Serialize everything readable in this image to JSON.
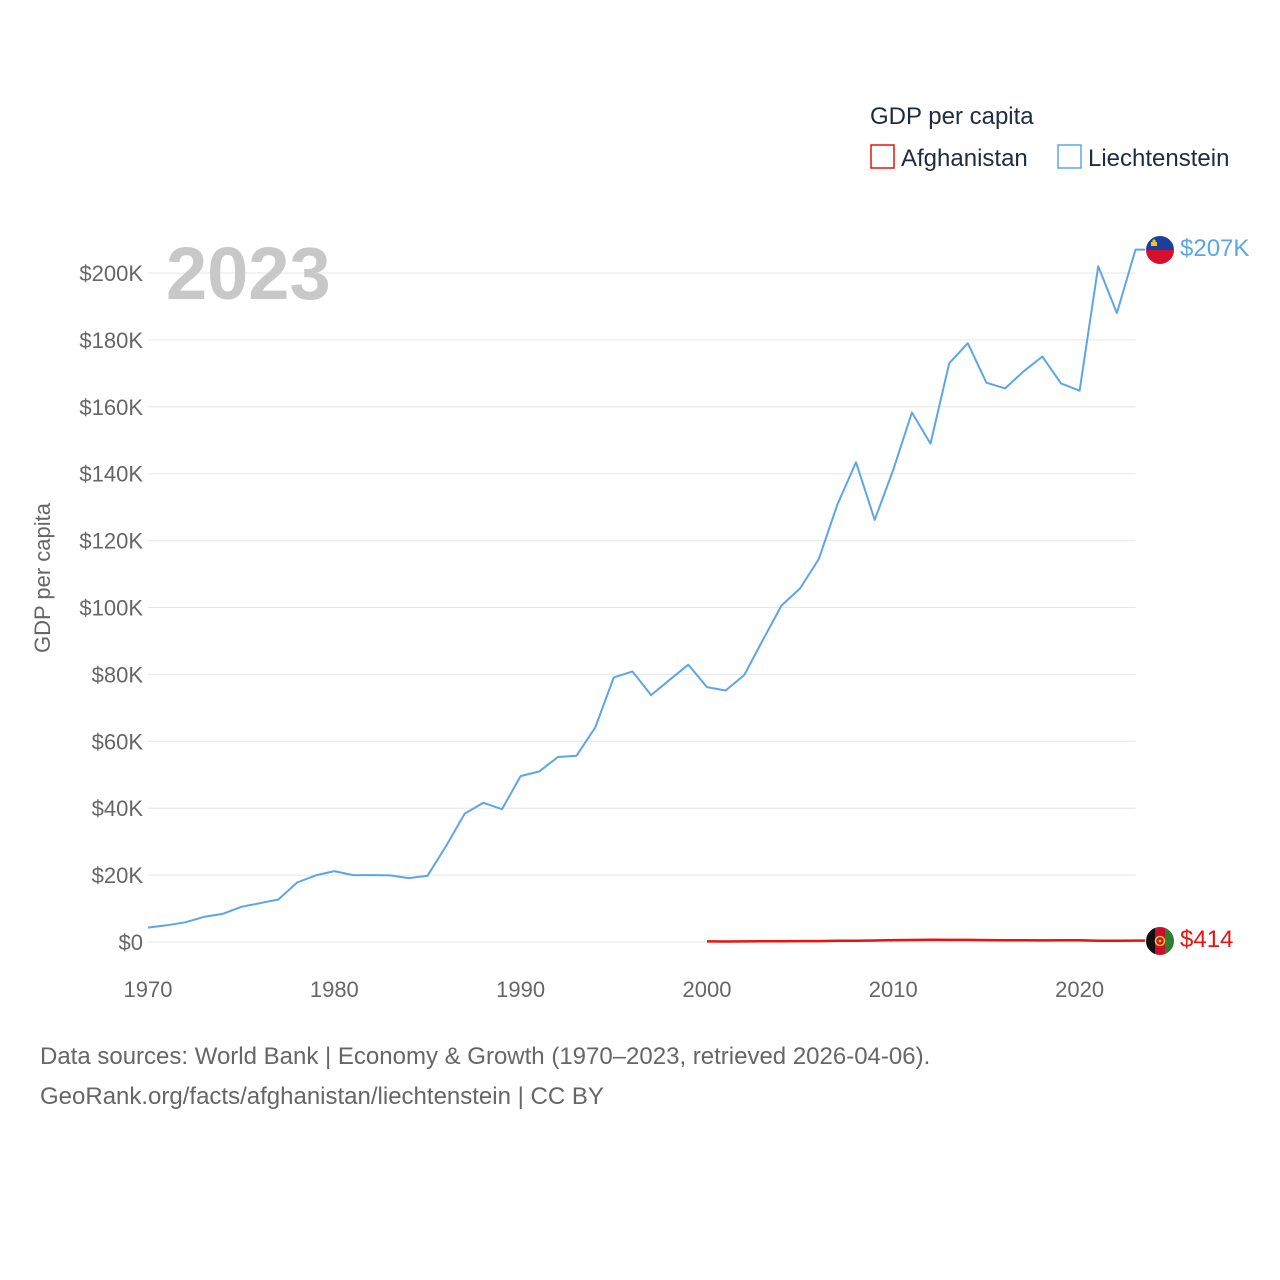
{
  "chart_data": {
    "type": "line",
    "year_label": "2023",
    "legend_title": "GDP per capita",
    "ylabel": "GDP per capita",
    "xlabel": "",
    "xlim": [
      1970,
      2023
    ],
    "ylim": [
      0,
      200000
    ],
    "x_ticks": [
      1970,
      1980,
      1990,
      2000,
      2010,
      2020
    ],
    "x_tick_labels": [
      "1970",
      "1980",
      "1990",
      "2000",
      "2010",
      "2020"
    ],
    "y_ticks": [
      0,
      20000,
      40000,
      60000,
      80000,
      100000,
      120000,
      140000,
      160000,
      180000,
      200000
    ],
    "y_tick_labels": [
      "$0",
      "$20K",
      "$40K",
      "$60K",
      "$80K",
      "$100K",
      "$120K",
      "$140K",
      "$160K",
      "$180K",
      "$200K"
    ],
    "grid": true,
    "legend_position": "top-right",
    "series": [
      {
        "name": "Afghanistan",
        "color": "#e8130f",
        "end_label": "$414",
        "flag": "afghanistan-flag",
        "x": [
          2000,
          2001,
          2002,
          2003,
          2004,
          2005,
          2006,
          2007,
          2008,
          2009,
          2010,
          2011,
          2012,
          2013,
          2014,
          2015,
          2016,
          2017,
          2018,
          2019,
          2020,
          2021,
          2022,
          2023
        ],
        "values": [
          174,
          138,
          183,
          200,
          221,
          255,
          274,
          376,
          382,
          452,
          561,
          607,
          651,
          637,
          625,
          566,
          522,
          526,
          492,
          497,
          511,
          356,
          357,
          414
        ]
      },
      {
        "name": "Liechtenstein",
        "color": "#5ea5e8",
        "end_label": "$207K",
        "flag": "liechtenstein-flag",
        "x": [
          1970,
          1971,
          1972,
          1973,
          1974,
          1975,
          1976,
          1977,
          1978,
          1979,
          1980,
          1981,
          1982,
          1983,
          1984,
          1985,
          1986,
          1987,
          1988,
          1989,
          1990,
          1991,
          1992,
          1993,
          1994,
          1995,
          1996,
          1997,
          1998,
          1999,
          2000,
          2001,
          2002,
          2003,
          2004,
          2005,
          2006,
          2007,
          2008,
          2009,
          2010,
          2011,
          2012,
          2013,
          2014,
          2015,
          2016,
          2017,
          2018,
          2019,
          2020,
          2021,
          2022,
          2023
        ],
        "values": [
          4300,
          5000,
          5900,
          7500,
          8400,
          10500,
          11600,
          12700,
          17800,
          19900,
          21200,
          20000,
          20000,
          19900,
          19100,
          19800,
          28700,
          38400,
          41600,
          39700,
          49600,
          51000,
          55300,
          55700,
          64100,
          79100,
          80900,
          73800,
          78400,
          82900,
          76200,
          75200,
          79800,
          90300,
          100600,
          105700,
          114500,
          130800,
          143400,
          126200,
          141200,
          158300,
          149000,
          173000,
          179000,
          167200,
          165500,
          170600,
          175000,
          167000,
          164800,
          202000,
          188000,
          207000
        ]
      }
    ]
  },
  "source": {
    "line1": "Data sources: World Bank | Economy & Growth (1970–2023, retrieved 2026-04-06).",
    "line2": "GeoRank.org/facts/afghanistan/liechtenstein | CC BY"
  }
}
